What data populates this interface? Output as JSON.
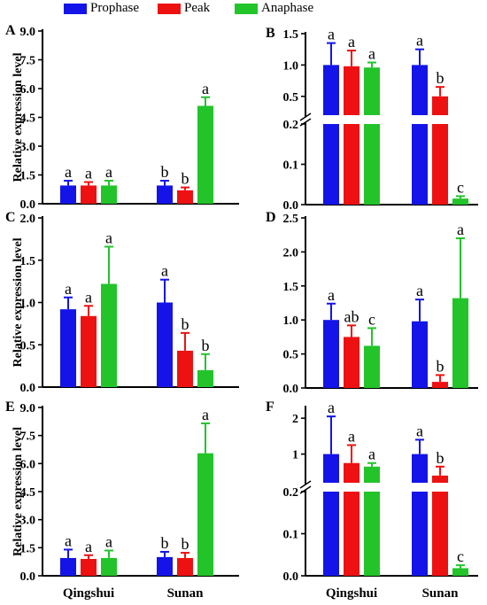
{
  "legend": [
    {
      "name": "Prophase",
      "color": "#1414e8"
    },
    {
      "name": "Peak",
      "color": "#ee1111"
    },
    {
      "name": "Anaphase",
      "color": "#22c42a"
    }
  ],
  "ylabel": "Relative expression level",
  "chart_data": [
    {
      "panel": "A",
      "type": "bar",
      "categories": [
        "Qingshui",
        "Sunan"
      ],
      "series": [
        {
          "name": "Prophase",
          "values": [
            0.95,
            0.95
          ],
          "errors": [
            0.25,
            0.25
          ],
          "letters": [
            "a",
            "b"
          ]
        },
        {
          "name": "Peak",
          "values": [
            0.95,
            0.7
          ],
          "errors": [
            0.18,
            0.15
          ],
          "letters": [
            "a",
            "b"
          ]
        },
        {
          "name": "Anaphase",
          "values": [
            0.95,
            5.1
          ],
          "errors": [
            0.25,
            0.45
          ],
          "letters": [
            "a",
            "a"
          ]
        }
      ],
      "ylim": [
        0,
        9
      ],
      "yticks": [
        "0.0",
        "1.5",
        "3.0",
        "4.5",
        "6.0",
        "7.5",
        "9.0"
      ],
      "ytickvals": [
        0,
        1.5,
        3,
        4.5,
        6,
        7.5,
        9
      ]
    },
    {
      "panel": "B",
      "type": "bar",
      "categories": [
        "Qingshui",
        "Sunan"
      ],
      "series": [
        {
          "name": "Prophase",
          "values": [
            1.0,
            1.0
          ],
          "errors": [
            0.35,
            0.25
          ],
          "letters": [
            "a",
            "a"
          ]
        },
        {
          "name": "Peak",
          "values": [
            0.98,
            0.5
          ],
          "errors": [
            0.25,
            0.15
          ],
          "letters": [
            "a",
            "b"
          ]
        },
        {
          "name": "Anaphase",
          "values": [
            0.96,
            0.015
          ],
          "errors": [
            0.08,
            0.006
          ],
          "letters": [
            "a",
            "c"
          ]
        }
      ],
      "broken_axis": {
        "lower": [
          0,
          0.2
        ],
        "upper": [
          0.2,
          1.5
        ]
      },
      "yticks_lower": [
        "0.0",
        "0.1",
        "0.2"
      ],
      "ytickvals_lower": [
        0,
        0.1,
        0.2
      ],
      "yticks_upper": [
        "0.5",
        "1.0",
        "1.5"
      ],
      "ytickvals_upper": [
        0.5,
        1.0,
        1.5
      ]
    },
    {
      "panel": "C",
      "type": "bar",
      "categories": [
        "Qingshui",
        "Sunan"
      ],
      "series": [
        {
          "name": "Prophase",
          "values": [
            0.92,
            1.0
          ],
          "errors": [
            0.14,
            0.27
          ],
          "letters": [
            "a",
            "a"
          ]
        },
        {
          "name": "Peak",
          "values": [
            0.84,
            0.43
          ],
          "errors": [
            0.12,
            0.21
          ],
          "letters": [
            "a",
            "b"
          ]
        },
        {
          "name": "Anaphase",
          "values": [
            1.22,
            0.2
          ],
          "errors": [
            0.44,
            0.19
          ],
          "letters": [
            "a",
            "b"
          ]
        }
      ],
      "ylim": [
        0,
        2
      ],
      "yticks": [
        "0.0",
        "0.5",
        "1.0",
        "1.5",
        "2.0"
      ],
      "ytickvals": [
        0,
        0.5,
        1,
        1.5,
        2
      ]
    },
    {
      "panel": "D",
      "type": "bar",
      "categories": [
        "Qingshui",
        "Sunan"
      ],
      "series": [
        {
          "name": "Prophase",
          "values": [
            1.0,
            0.98
          ],
          "errors": [
            0.24,
            0.32
          ],
          "letters": [
            "a",
            "a"
          ]
        },
        {
          "name": "Peak",
          "values": [
            0.75,
            0.09
          ],
          "errors": [
            0.17,
            0.1
          ],
          "letters": [
            "ab",
            "b"
          ]
        },
        {
          "name": "Anaphase",
          "values": [
            0.62,
            1.32
          ],
          "errors": [
            0.26,
            0.88
          ],
          "letters": [
            "c",
            "a"
          ]
        }
      ],
      "ylim": [
        0,
        2.5
      ],
      "yticks": [
        "0.0",
        "0.5",
        "1.0",
        "1.5",
        "2.0",
        "2.5"
      ],
      "ytickvals": [
        0,
        0.5,
        1,
        1.5,
        2,
        2.5
      ]
    },
    {
      "panel": "E",
      "type": "bar",
      "categories": [
        "Qingshui",
        "Sunan"
      ],
      "series": [
        {
          "name": "Prophase",
          "values": [
            0.95,
            1.0
          ],
          "errors": [
            0.45,
            0.28
          ],
          "letters": [
            "a",
            "b"
          ]
        },
        {
          "name": "Peak",
          "values": [
            0.9,
            0.95
          ],
          "errors": [
            0.2,
            0.28
          ],
          "letters": [
            "a",
            "b"
          ]
        },
        {
          "name": "Anaphase",
          "values": [
            0.95,
            6.55
          ],
          "errors": [
            0.4,
            1.6
          ],
          "letters": [
            "a",
            "a"
          ]
        }
      ],
      "ylim": [
        0,
        9
      ],
      "yticks": [
        "0.0",
        "1.5",
        "3.0",
        "4.5",
        "6.0",
        "7.5",
        "9.0"
      ],
      "ytickvals": [
        0,
        1.5,
        3,
        4.5,
        6,
        7.5,
        9
      ]
    },
    {
      "panel": "F",
      "type": "bar",
      "categories": [
        "Qingshui",
        "Sunan"
      ],
      "series": [
        {
          "name": "Prophase",
          "values": [
            1.0,
            1.0
          ],
          "errors": [
            1.05,
            0.4
          ],
          "letters": [
            "a",
            "a"
          ]
        },
        {
          "name": "Peak",
          "values": [
            0.75,
            0.4
          ],
          "errors": [
            0.5,
            0.25
          ],
          "letters": [
            "a",
            "b"
          ]
        },
        {
          "name": "Anaphase",
          "values": [
            0.65,
            0.018
          ],
          "errors": [
            0.1,
            0.007
          ],
          "letters": [
            "a",
            "c"
          ]
        }
      ],
      "broken_axis": {
        "lower": [
          0,
          0.2
        ],
        "upper": [
          0.2,
          2.3
        ]
      },
      "yticks_lower": [
        "0.0",
        "0.1",
        "0.2"
      ],
      "ytickvals_lower": [
        0,
        0.1,
        0.2
      ],
      "yticks_upper": [
        "1",
        "2"
      ],
      "ytickvals_upper": [
        1,
        2
      ]
    }
  ]
}
